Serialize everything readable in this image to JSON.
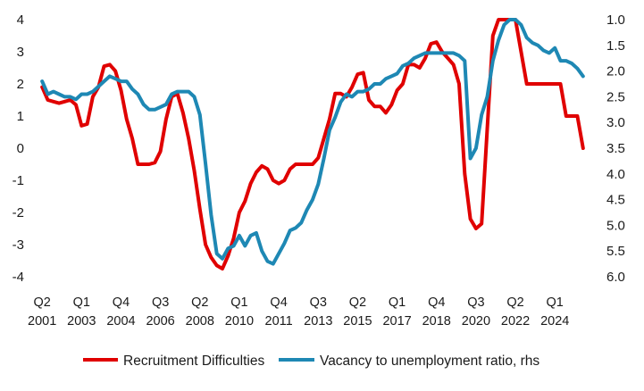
{
  "chart_data": {
    "type": "line",
    "title": "",
    "xlabel": "",
    "ylabel": "",
    "y_left": {
      "ticks": [
        4,
        3,
        2,
        1,
        0,
        -1,
        -2,
        -3,
        -4
      ],
      "labels": [
        "4",
        "3",
        "2",
        "1",
        "0",
        "-1",
        "-2",
        "-3",
        "-4"
      ],
      "range": [
        -4,
        4
      ]
    },
    "y_right": {
      "ticks": [
        1.0,
        1.5,
        2.0,
        2.5,
        3.0,
        3.5,
        4.0,
        4.5,
        5.0,
        5.5,
        6.0
      ],
      "labels": [
        "1.0",
        "1.5",
        "2.0",
        "2.5",
        "3.0",
        "3.5",
        "4.0",
        "4.5",
        "5.0",
        "5.5",
        "6.0"
      ],
      "range": [
        1.0,
        6.0
      ],
      "inverted": true
    },
    "x_range": [
      2001.25,
      2025.9
    ],
    "x_ticks": [
      {
        "x": 2001.375,
        "quarter": "Q2",
        "year": "2001"
      },
      {
        "x": 2003.125,
        "quarter": "Q1",
        "year": "2003"
      },
      {
        "x": 2004.875,
        "quarter": "Q4",
        "year": "2004"
      },
      {
        "x": 2006.625,
        "quarter": "Q3",
        "year": "2006"
      },
      {
        "x": 2008.375,
        "quarter": "Q2",
        "year": "2008"
      },
      {
        "x": 2010.125,
        "quarter": "Q1",
        "year": "2010"
      },
      {
        "x": 2011.875,
        "quarter": "Q4",
        "year": "2011"
      },
      {
        "x": 2013.625,
        "quarter": "Q3",
        "year": "2013"
      },
      {
        "x": 2015.375,
        "quarter": "Q2",
        "year": "2015"
      },
      {
        "x": 2017.125,
        "quarter": "Q1",
        "year": "2017"
      },
      {
        "x": 2018.875,
        "quarter": "Q4",
        "year": "2018"
      },
      {
        "x": 2020.625,
        "quarter": "Q3",
        "year": "2020"
      },
      {
        "x": 2022.375,
        "quarter": "Q2",
        "year": "2022"
      },
      {
        "x": 2024.125,
        "quarter": "Q1",
        "year": "2024"
      }
    ],
    "grid": false,
    "legend": {
      "placement": "bottom",
      "entries": [
        "Recruitment Difficulties",
        "Vacancy to unemployment ratio, rhs"
      ]
    },
    "series": [
      {
        "name": "Recruitment Difficulties",
        "axis": "left",
        "color": "#e00000",
        "points": [
          [
            2001.375,
            1.9
          ],
          [
            2001.625,
            1.5
          ],
          [
            2001.875,
            1.45
          ],
          [
            2002.125,
            1.4
          ],
          [
            2002.375,
            1.45
          ],
          [
            2002.625,
            1.5
          ],
          [
            2002.875,
            1.35
          ],
          [
            2003.125,
            0.7
          ],
          [
            2003.375,
            0.75
          ],
          [
            2003.625,
            1.6
          ],
          [
            2003.875,
            1.9
          ],
          [
            2004.125,
            2.55
          ],
          [
            2004.375,
            2.6
          ],
          [
            2004.625,
            2.4
          ],
          [
            2004.875,
            1.8
          ],
          [
            2005.125,
            0.9
          ],
          [
            2005.375,
            0.3
          ],
          [
            2005.625,
            -0.5
          ],
          [
            2005.875,
            -0.5
          ],
          [
            2006.125,
            -0.5
          ],
          [
            2006.375,
            -0.45
          ],
          [
            2006.625,
            -0.1
          ],
          [
            2006.875,
            0.9
          ],
          [
            2007.125,
            1.6
          ],
          [
            2007.375,
            1.7
          ],
          [
            2007.625,
            1.1
          ],
          [
            2007.875,
            0.3
          ],
          [
            2008.125,
            -0.7
          ],
          [
            2008.375,
            -1.9
          ],
          [
            2008.625,
            -3.0
          ],
          [
            2008.875,
            -3.4
          ],
          [
            2009.125,
            -3.65
          ],
          [
            2009.375,
            -3.75
          ],
          [
            2009.625,
            -3.35
          ],
          [
            2009.875,
            -2.8
          ],
          [
            2010.125,
            -2.0
          ],
          [
            2010.375,
            -1.65
          ],
          [
            2010.625,
            -1.1
          ],
          [
            2010.875,
            -0.75
          ],
          [
            2011.125,
            -0.55
          ],
          [
            2011.375,
            -0.65
          ],
          [
            2011.625,
            -1.0
          ],
          [
            2011.875,
            -1.1
          ],
          [
            2012.125,
            -1.0
          ],
          [
            2012.375,
            -0.65
          ],
          [
            2012.625,
            -0.5
          ],
          [
            2012.875,
            -0.5
          ],
          [
            2013.125,
            -0.5
          ],
          [
            2013.375,
            -0.5
          ],
          [
            2013.625,
            -0.3
          ],
          [
            2013.875,
            0.3
          ],
          [
            2014.125,
            0.9
          ],
          [
            2014.375,
            1.7
          ],
          [
            2014.625,
            1.7
          ],
          [
            2014.875,
            1.6
          ],
          [
            2015.125,
            1.9
          ],
          [
            2015.375,
            2.3
          ],
          [
            2015.625,
            2.35
          ],
          [
            2015.875,
            1.5
          ],
          [
            2016.125,
            1.3
          ],
          [
            2016.375,
            1.3
          ],
          [
            2016.625,
            1.1
          ],
          [
            2016.875,
            1.35
          ],
          [
            2017.125,
            1.8
          ],
          [
            2017.375,
            2.0
          ],
          [
            2017.625,
            2.6
          ],
          [
            2017.875,
            2.6
          ],
          [
            2018.125,
            2.5
          ],
          [
            2018.375,
            2.8
          ],
          [
            2018.625,
            3.25
          ],
          [
            2018.875,
            3.3
          ],
          [
            2019.125,
            3.0
          ],
          [
            2019.375,
            2.8
          ],
          [
            2019.625,
            2.6
          ],
          [
            2019.875,
            2.0
          ],
          [
            2020.125,
            -0.8
          ],
          [
            2020.375,
            -2.2
          ],
          [
            2020.625,
            -2.5
          ],
          [
            2020.875,
            -2.35
          ],
          [
            2021.125,
            0.6
          ],
          [
            2021.375,
            3.5
          ],
          [
            2021.625,
            4.0
          ],
          [
            2021.875,
            4.0
          ],
          [
            2022.125,
            4.0
          ],
          [
            2022.375,
            4.0
          ],
          [
            2022.625,
            3.0
          ],
          [
            2022.875,
            2.0
          ],
          [
            2023.125,
            2.0
          ],
          [
            2023.375,
            2.0
          ],
          [
            2023.625,
            2.0
          ],
          [
            2023.875,
            2.0
          ],
          [
            2024.125,
            2.0
          ],
          [
            2024.375,
            2.0
          ],
          [
            2024.625,
            1.0
          ],
          [
            2024.875,
            1.0
          ],
          [
            2025.125,
            1.0
          ],
          [
            2025.375,
            0.0
          ]
        ]
      },
      {
        "name": "Vacancy to unemployment ratio, rhs",
        "axis": "right",
        "color": "#1e88b4",
        "points": [
          [
            2001.375,
            2.2
          ],
          [
            2001.625,
            2.45
          ],
          [
            2001.875,
            2.4
          ],
          [
            2002.125,
            2.45
          ],
          [
            2002.375,
            2.5
          ],
          [
            2002.625,
            2.5
          ],
          [
            2002.875,
            2.55
          ],
          [
            2003.125,
            2.45
          ],
          [
            2003.375,
            2.45
          ],
          [
            2003.625,
            2.4
          ],
          [
            2003.875,
            2.3
          ],
          [
            2004.125,
            2.2
          ],
          [
            2004.375,
            2.1
          ],
          [
            2004.625,
            2.15
          ],
          [
            2004.875,
            2.2
          ],
          [
            2005.125,
            2.2
          ],
          [
            2005.375,
            2.35
          ],
          [
            2005.625,
            2.45
          ],
          [
            2005.875,
            2.65
          ],
          [
            2006.125,
            2.75
          ],
          [
            2006.375,
            2.75
          ],
          [
            2006.625,
            2.7
          ],
          [
            2006.875,
            2.65
          ],
          [
            2007.125,
            2.45
          ],
          [
            2007.375,
            2.4
          ],
          [
            2007.625,
            2.4
          ],
          [
            2007.875,
            2.4
          ],
          [
            2008.125,
            2.5
          ],
          [
            2008.375,
            2.85
          ],
          [
            2008.625,
            3.8
          ],
          [
            2008.875,
            4.8
          ],
          [
            2009.125,
            5.55
          ],
          [
            2009.375,
            5.65
          ],
          [
            2009.625,
            5.45
          ],
          [
            2009.875,
            5.4
          ],
          [
            2010.125,
            5.2
          ],
          [
            2010.375,
            5.4
          ],
          [
            2010.625,
            5.2
          ],
          [
            2010.875,
            5.15
          ],
          [
            2011.125,
            5.5
          ],
          [
            2011.375,
            5.7
          ],
          [
            2011.625,
            5.75
          ],
          [
            2011.875,
            5.55
          ],
          [
            2012.125,
            5.35
          ],
          [
            2012.375,
            5.1
          ],
          [
            2012.625,
            5.05
          ],
          [
            2012.875,
            4.95
          ],
          [
            2013.125,
            4.7
          ],
          [
            2013.375,
            4.5
          ],
          [
            2013.625,
            4.2
          ],
          [
            2013.875,
            3.7
          ],
          [
            2014.125,
            3.15
          ],
          [
            2014.375,
            2.9
          ],
          [
            2014.625,
            2.6
          ],
          [
            2014.875,
            2.45
          ],
          [
            2015.125,
            2.5
          ],
          [
            2015.375,
            2.4
          ],
          [
            2015.625,
            2.4
          ],
          [
            2015.875,
            2.35
          ],
          [
            2016.125,
            2.25
          ],
          [
            2016.375,
            2.25
          ],
          [
            2016.625,
            2.15
          ],
          [
            2016.875,
            2.1
          ],
          [
            2017.125,
            2.05
          ],
          [
            2017.375,
            1.9
          ],
          [
            2017.625,
            1.85
          ],
          [
            2017.875,
            1.75
          ],
          [
            2018.125,
            1.7
          ],
          [
            2018.375,
            1.65
          ],
          [
            2018.625,
            1.65
          ],
          [
            2018.875,
            1.65
          ],
          [
            2019.125,
            1.65
          ],
          [
            2019.375,
            1.65
          ],
          [
            2019.625,
            1.65
          ],
          [
            2019.875,
            1.7
          ],
          [
            2020.125,
            1.8
          ],
          [
            2020.375,
            3.7
          ],
          [
            2020.625,
            3.5
          ],
          [
            2020.875,
            2.85
          ],
          [
            2021.125,
            2.5
          ],
          [
            2021.375,
            1.8
          ],
          [
            2021.625,
            1.4
          ],
          [
            2021.875,
            1.1
          ],
          [
            2022.125,
            1.0
          ],
          [
            2022.375,
            1.0
          ],
          [
            2022.625,
            1.1
          ],
          [
            2022.875,
            1.35
          ],
          [
            2023.125,
            1.45
          ],
          [
            2023.375,
            1.5
          ],
          [
            2023.625,
            1.6
          ],
          [
            2023.875,
            1.65
          ],
          [
            2024.125,
            1.55
          ],
          [
            2024.375,
            1.8
          ],
          [
            2024.625,
            1.8
          ],
          [
            2024.875,
            1.85
          ],
          [
            2025.125,
            1.95
          ],
          [
            2025.375,
            2.1
          ]
        ]
      }
    ]
  }
}
